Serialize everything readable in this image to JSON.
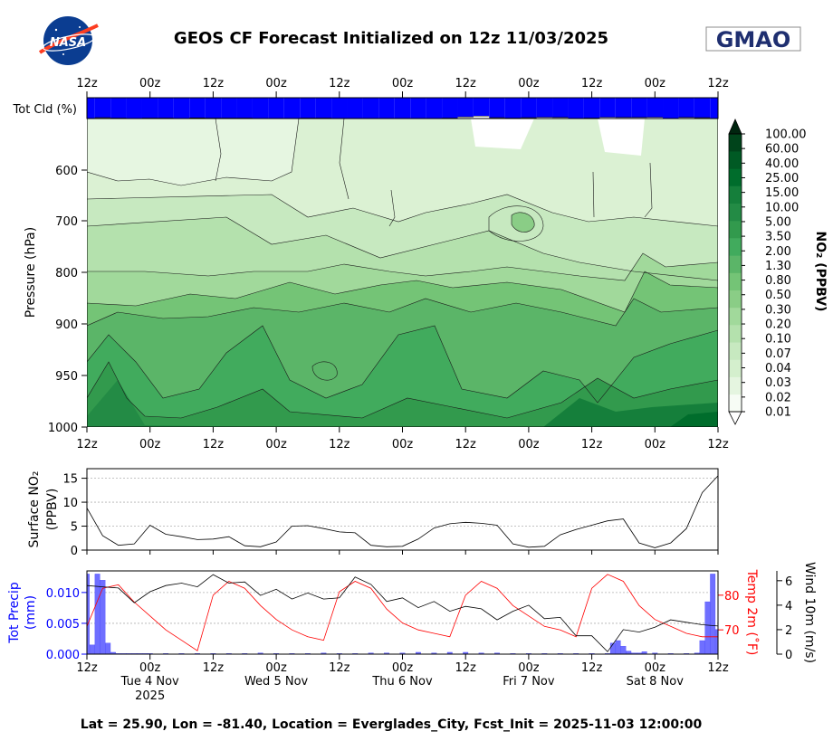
{
  "header": {
    "title": "GEOS CF Forecast Initialized on 12z 11/03/2025",
    "nasa_logo_text": "NASA",
    "gmao_logo_text": "GMAO"
  },
  "footer": {
    "caption": "Lat = 25.90, Lon = -81.40, Location = Everglades_City, Fcst_Init = 2025-11-03 12:00:00"
  },
  "colors": {
    "cloud_fill": "#0000ff",
    "precip_bar": "#6f6fff",
    "precip_axis": "#0000ff",
    "temp_line": "#ff0000",
    "wind_line": "#000000",
    "no2_scale": [
      "#f7fcf5",
      "#e5f5e0",
      "#d4efcd",
      "#c7e9c0",
      "#b4e1ad",
      "#a1d99b",
      "#8acd86",
      "#74c476",
      "#5bb568",
      "#41ab5d",
      "#329a4d",
      "#238b45",
      "#157f3b",
      "#006d2c",
      "#005a24",
      "#00441b"
    ]
  },
  "chart_data": [
    {
      "id": "cloud",
      "type": "bar",
      "ylabel": "Tot Cld (%)",
      "time_ticks": [
        "12z",
        "00z",
        "12z",
        "00z",
        "12z",
        "00z",
        "12z",
        "00z",
        "12z",
        "00z",
        "12z"
      ],
      "hours": [
        0,
        3,
        6,
        9,
        12,
        15,
        18,
        21,
        24,
        27,
        30,
        33,
        36,
        39,
        42,
        45,
        48,
        51,
        54,
        57,
        60,
        63,
        66,
        69,
        72,
        75,
        78,
        81,
        84,
        87,
        90,
        93,
        96,
        99,
        102,
        105,
        108,
        111,
        114,
        117,
        120
      ],
      "values": [
        100,
        96,
        98,
        100,
        98,
        98,
        100,
        97,
        98,
        98,
        98,
        100,
        100,
        100,
        98,
        98,
        100,
        100,
        100,
        100,
        100,
        100,
        100,
        98,
        92,
        88,
        96,
        98,
        96,
        94,
        95,
        100,
        98,
        94,
        95,
        95,
        94,
        100,
        95,
        96,
        100
      ]
    },
    {
      "id": "no2_profile",
      "type": "heatmap",
      "ylabel": "Pressure (hPa)",
      "y_ticks": [
        "600",
        "700",
        "800",
        "900",
        "950",
        "1000"
      ],
      "x_ticks": [
        "12z",
        "00z",
        "12z",
        "00z",
        "12z",
        "00z",
        "12z",
        "00z",
        "12z",
        "00z",
        "12z"
      ],
      "colorbar_label": "NO₂ (PPBV)",
      "levels": [
        "0.01",
        "0.02",
        "0.03",
        "0.04",
        "0.07",
        "0.10",
        "0.20",
        "0.30",
        "0.50",
        "0.80",
        "1.30",
        "2.00",
        "3.50",
        "5.00",
        "10.00",
        "15.00",
        "25.00",
        "40.00",
        "60.00",
        "100.00"
      ]
    },
    {
      "id": "surface_no2",
      "type": "line",
      "ylabel": "Surface NO₂ (PPBV)",
      "ylim": [
        0,
        17
      ],
      "y_ticks": [
        "0",
        "5",
        "10",
        "15"
      ],
      "grid": true,
      "hours": [
        0,
        3,
        6,
        9,
        12,
        15,
        18,
        21,
        24,
        27,
        30,
        33,
        36,
        39,
        42,
        45,
        48,
        51,
        54,
        57,
        60,
        63,
        66,
        69,
        72,
        75,
        78,
        81,
        84,
        87,
        90,
        93,
        96,
        99,
        102,
        105,
        108,
        111,
        114,
        117,
        120
      ],
      "values": [
        8.8,
        3.0,
        1.0,
        1.3,
        5.2,
        3.3,
        2.8,
        2.2,
        2.3,
        2.8,
        0.9,
        0.7,
        1.7,
        5.0,
        5.1,
        4.5,
        3.8,
        3.6,
        1.0,
        0.7,
        0.8,
        2.3,
        4.6,
        5.5,
        5.8,
        5.6,
        5.2,
        1.3,
        0.6,
        0.8,
        3.2,
        4.3,
        5.2,
        6.1,
        6.5,
        1.5,
        0.5,
        1.5,
        4.5,
        12.0,
        15.5
      ]
    },
    {
      "id": "met",
      "type": "line",
      "x_ticks": [
        "12z",
        "00z",
        "12z",
        "00z",
        "12z",
        "00z",
        "12z",
        "00z",
        "12z",
        "00z",
        "12z"
      ],
      "x_dates": [
        "Tue 4 Nov\n2025",
        "Wed 5 Nov",
        "Thu 6 Nov",
        "Fri 7 Nov",
        "Sat 8 Nov"
      ],
      "series": [
        {
          "name": "Tot Precip (mm)",
          "axis": "left",
          "ylim": [
            0,
            0.0135
          ],
          "y_ticks": [
            "0.000",
            "0.005",
            "0.010"
          ],
          "hours": [
            0,
            1,
            2,
            3,
            4,
            5,
            6,
            7,
            8,
            9,
            10,
            11,
            12,
            15,
            18,
            21,
            24,
            27,
            30,
            33,
            36,
            39,
            42,
            45,
            48,
            51,
            54,
            57,
            60,
            63,
            66,
            69,
            72,
            75,
            78,
            81,
            84,
            87,
            90,
            93,
            96,
            99,
            100,
            101,
            102,
            103,
            104,
            105,
            106,
            108,
            111,
            114,
            116,
            117,
            118,
            119,
            120
          ],
          "values": [
            0.013,
            0.0015,
            0.013,
            0.012,
            0.0018,
            0.0003,
            0.0001,
            0.0001,
            0.0001,
            0.0001,
            0.0001,
            0.0001,
            0.0001,
            0.0001,
            0.0001,
            0.0001,
            0.0001,
            0.0001,
            0.0001,
            0.0002,
            0.0001,
            0.0001,
            0.0001,
            0.0002,
            0.0001,
            0.0001,
            0.0002,
            0.0002,
            0.0002,
            0.0003,
            0.0002,
            0.0003,
            0.0003,
            0.0002,
            0.0002,
            0.0001,
            0.0001,
            0.0001,
            0.0001,
            0.0001,
            0.0001,
            0.0001,
            0.0018,
            0.0022,
            0.0013,
            0.0005,
            0.0002,
            0.0002,
            0.0004,
            0.0002,
            0.0001,
            0.0001,
            0.0002,
            0.0022,
            0.0085,
            0.013,
            0.004
          ]
        },
        {
          "name": "Temp 2m (°F)",
          "axis": "right1",
          "ylim": [
            63,
            87
          ],
          "y_ticks": [
            "70",
            "80"
          ],
          "hours": [
            0,
            3,
            6,
            9,
            12,
            15,
            18,
            21,
            24,
            27,
            30,
            33,
            36,
            39,
            42,
            45,
            48,
            51,
            54,
            57,
            60,
            63,
            66,
            69,
            72,
            75,
            78,
            81,
            84,
            87,
            90,
            93,
            96,
            99,
            102,
            105,
            108,
            111,
            114,
            117,
            120
          ],
          "values": [
            71,
            82,
            83,
            78,
            74,
            70,
            67,
            64,
            80,
            84,
            82,
            77,
            73,
            70,
            68,
            67,
            81,
            84,
            82,
            76,
            72,
            70,
            69,
            68,
            80,
            84,
            82,
            77,
            74,
            71,
            70,
            68,
            82,
            86,
            84,
            77,
            73,
            71,
            69,
            68,
            68
          ]
        },
        {
          "name": "Wind 10m (m/s)",
          "axis": "right2",
          "ylim": [
            0,
            6.8
          ],
          "y_ticks": [
            "0",
            "2",
            "4",
            "6"
          ],
          "hours": [
            0,
            3,
            6,
            9,
            12,
            15,
            18,
            21,
            24,
            27,
            30,
            33,
            36,
            39,
            42,
            45,
            48,
            51,
            54,
            57,
            60,
            63,
            66,
            69,
            72,
            75,
            78,
            81,
            84,
            87,
            90,
            93,
            96,
            99,
            102,
            105,
            108,
            111,
            114,
            117,
            120
          ],
          "values": [
            5.6,
            5.5,
            5.4,
            4.2,
            5.1,
            5.6,
            5.8,
            5.5,
            6.5,
            5.8,
            5.9,
            4.8,
            5.3,
            4.5,
            5.0,
            4.5,
            4.6,
            6.3,
            5.7,
            4.3,
            4.6,
            3.8,
            4.3,
            3.5,
            3.9,
            3.7,
            2.8,
            3.5,
            4.0,
            2.9,
            3.0,
            1.5,
            1.5,
            0.2,
            2.0,
            1.8,
            2.2,
            2.8,
            2.6,
            2.4,
            2.3
          ]
        }
      ]
    }
  ]
}
